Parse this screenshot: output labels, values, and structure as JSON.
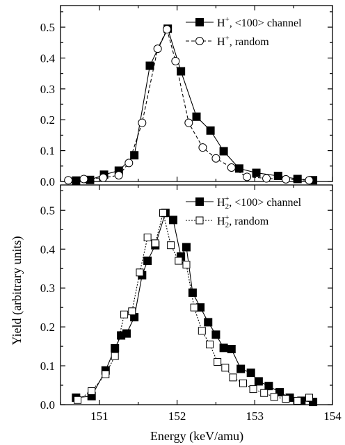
{
  "chart_data": [
    {
      "type": "line",
      "panel": "top",
      "xlim": [
        150.5,
        154
      ],
      "ylim": [
        0,
        0.57
      ],
      "y_ticks": [
        0.0,
        0.1,
        0.2,
        0.3,
        0.4,
        0.5
      ],
      "y_tick_labels": [
        "0.0",
        "0.1",
        "0.2",
        "0.3",
        "0.4",
        "0.5"
      ],
      "grid": false,
      "legend_position": "top-right",
      "series": [
        {
          "name": "H",
          "name_sup": "+",
          "name_rest": ", <100> channel",
          "marker": "filled-square",
          "line": "solid",
          "x": [
            150.7,
            150.88,
            151.06,
            151.25,
            151.45,
            151.65,
            151.88,
            152.05,
            152.25,
            152.43,
            152.6,
            152.8,
            153.02,
            153.3,
            153.55,
            153.75
          ],
          "y": [
            0.003,
            0.005,
            0.022,
            0.035,
            0.085,
            0.375,
            0.495,
            0.357,
            0.21,
            0.165,
            0.098,
            0.042,
            0.028,
            0.018,
            0.008,
            0.004
          ]
        },
        {
          "name": "H",
          "name_sup": "+",
          "name_rest": ", random",
          "marker": "open-circle",
          "line": "dashed",
          "x": [
            150.6,
            150.8,
            151.05,
            151.25,
            151.38,
            151.55,
            151.75,
            151.87,
            151.98,
            152.15,
            152.33,
            152.5,
            152.7,
            152.9,
            153.15,
            153.4,
            153.7
          ],
          "y": [
            0.004,
            0.008,
            0.012,
            0.02,
            0.06,
            0.19,
            0.43,
            0.493,
            0.39,
            0.19,
            0.11,
            0.075,
            0.045,
            0.015,
            0.01,
            0.007,
            0.004
          ]
        }
      ]
    },
    {
      "type": "line",
      "panel": "bottom",
      "xlim": [
        150.5,
        154
      ],
      "ylim": [
        0,
        0.565
      ],
      "x_ticks": [
        151,
        152,
        153,
        154
      ],
      "x_tick_labels": [
        "151",
        "152",
        "153",
        "154"
      ],
      "y_ticks": [
        0.0,
        0.1,
        0.2,
        0.3,
        0.4,
        0.5
      ],
      "y_tick_labels": [
        "0.0",
        "0.1",
        "0.2",
        "0.3",
        "0.4",
        "0.5"
      ],
      "xlabel": "Energy (keV/amu)",
      "ylabel": "Yield (arbitrary units)",
      "grid": false,
      "legend_position": "top-right",
      "series": [
        {
          "name": "H",
          "name_sub": "2",
          "name_sup": "+",
          "name_rest": ", <100> channel",
          "marker": "filled-square",
          "line": "solid",
          "x": [
            150.7,
            150.9,
            151.08,
            151.2,
            151.28,
            151.35,
            151.45,
            151.55,
            151.62,
            151.72,
            151.85,
            151.95,
            152.05,
            152.12,
            152.2,
            152.3,
            152.4,
            152.5,
            152.6,
            152.7,
            152.82,
            152.95,
            153.05,
            153.18,
            153.32,
            153.45,
            153.6,
            153.75
          ],
          "y": [
            0.018,
            0.022,
            0.088,
            0.145,
            0.178,
            0.183,
            0.225,
            0.333,
            0.37,
            0.41,
            0.493,
            0.475,
            0.381,
            0.405,
            0.288,
            0.25,
            0.212,
            0.18,
            0.146,
            0.143,
            0.092,
            0.082,
            0.06,
            0.048,
            0.032,
            0.018,
            0.01,
            0.007
          ]
        },
        {
          "name": "H",
          "name_sub": "2",
          "name_sup": "+",
          "name_rest": ", random",
          "marker": "open-square",
          "line": "dotted",
          "x": [
            150.72,
            150.9,
            151.08,
            151.2,
            151.32,
            151.42,
            151.52,
            151.62,
            151.72,
            151.82,
            151.92,
            152.02,
            152.12,
            152.22,
            152.32,
            152.42,
            152.52,
            152.62,
            152.72,
            152.85,
            152.98,
            153.12,
            153.25,
            153.4,
            153.55,
            153.7
          ],
          "y": [
            0.012,
            0.035,
            0.078,
            0.125,
            0.232,
            0.24,
            0.34,
            0.43,
            0.415,
            0.493,
            0.41,
            0.37,
            0.36,
            0.25,
            0.19,
            0.155,
            0.11,
            0.095,
            0.07,
            0.055,
            0.04,
            0.03,
            0.02,
            0.015,
            0.01,
            0.018
          ]
        }
      ]
    }
  ]
}
